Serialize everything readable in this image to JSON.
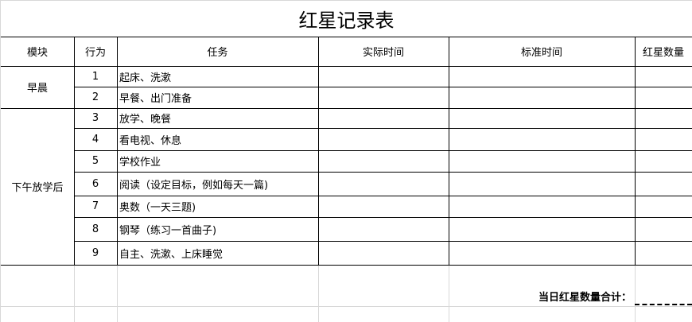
{
  "title": "红星记录表",
  "headers": [
    "模块",
    "行为",
    "任务",
    "实际时间",
    "标准时间",
    "红星数量"
  ],
  "groups": [
    "早晨",
    "下午放学后"
  ],
  "rows": [
    {
      "no": "1",
      "task": "起床、洗漱"
    },
    {
      "no": "2",
      "task": "早餐、出门准备"
    },
    {
      "no": "3",
      "task": "放学、晚餐"
    },
    {
      "no": "4",
      "task": "看电视、休息"
    },
    {
      "no": "5",
      "task": "学校作业"
    },
    {
      "no": "6",
      "task": "阅读（设定目标，例如每天一篇)"
    },
    {
      "no": "7",
      "task": "奥数（一天三题)"
    },
    {
      "no": "8",
      "task": "钢琴（练习一首曲子)"
    },
    {
      "no": "9",
      "task": "自主、洗漱、上床睡觉"
    }
  ],
  "total_label": "当日红星数量合计："
}
